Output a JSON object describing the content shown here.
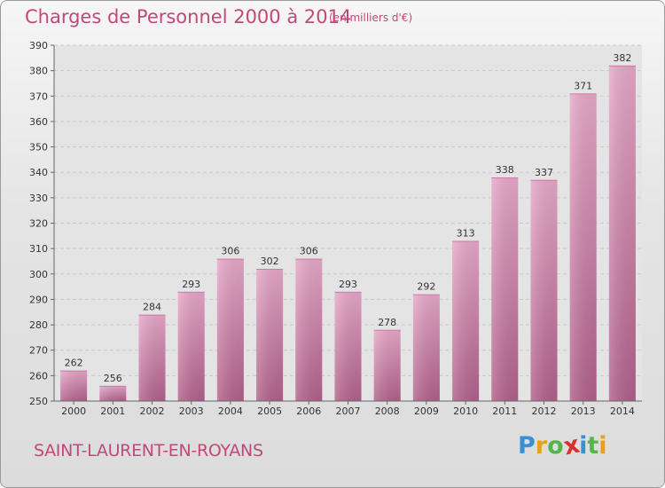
{
  "title": "Charges de Personnel 2000 à 2014",
  "subtitle": "(en milliers d'€)",
  "commune": "SAINT-LAURENT-EN-ROYANS",
  "brand": {
    "letters": [
      "P",
      "r",
      "o",
      "x",
      "i",
      "t",
      "i"
    ],
    "colors": [
      "#3c8fd6",
      "#e8a21a",
      "#52b64a",
      "#d8312f",
      "#3c8fd6",
      "#52b64a",
      "#e8a21a"
    ]
  },
  "colors": {
    "accent": "#c2487a",
    "bar_light": "#e6a8c8",
    "bar_dark": "#b1608a"
  },
  "chart_data": {
    "type": "bar",
    "categories": [
      "2000",
      "2001",
      "2002",
      "2003",
      "2004",
      "2005",
      "2006",
      "2007",
      "2008",
      "2009",
      "2010",
      "2011",
      "2012",
      "2013",
      "2014"
    ],
    "values": [
      262,
      256,
      284,
      293,
      306,
      302,
      306,
      293,
      278,
      292,
      313,
      338,
      337,
      371,
      382
    ],
    "title": "Charges de Personnel 2000 à 2014",
    "xlabel": "",
    "ylabel": "",
    "ylim": [
      250,
      390
    ],
    "yticks": [
      250,
      260,
      270,
      280,
      290,
      300,
      310,
      320,
      330,
      340,
      350,
      360,
      370,
      380,
      390
    ],
    "grid": true,
    "data_labels": true
  }
}
